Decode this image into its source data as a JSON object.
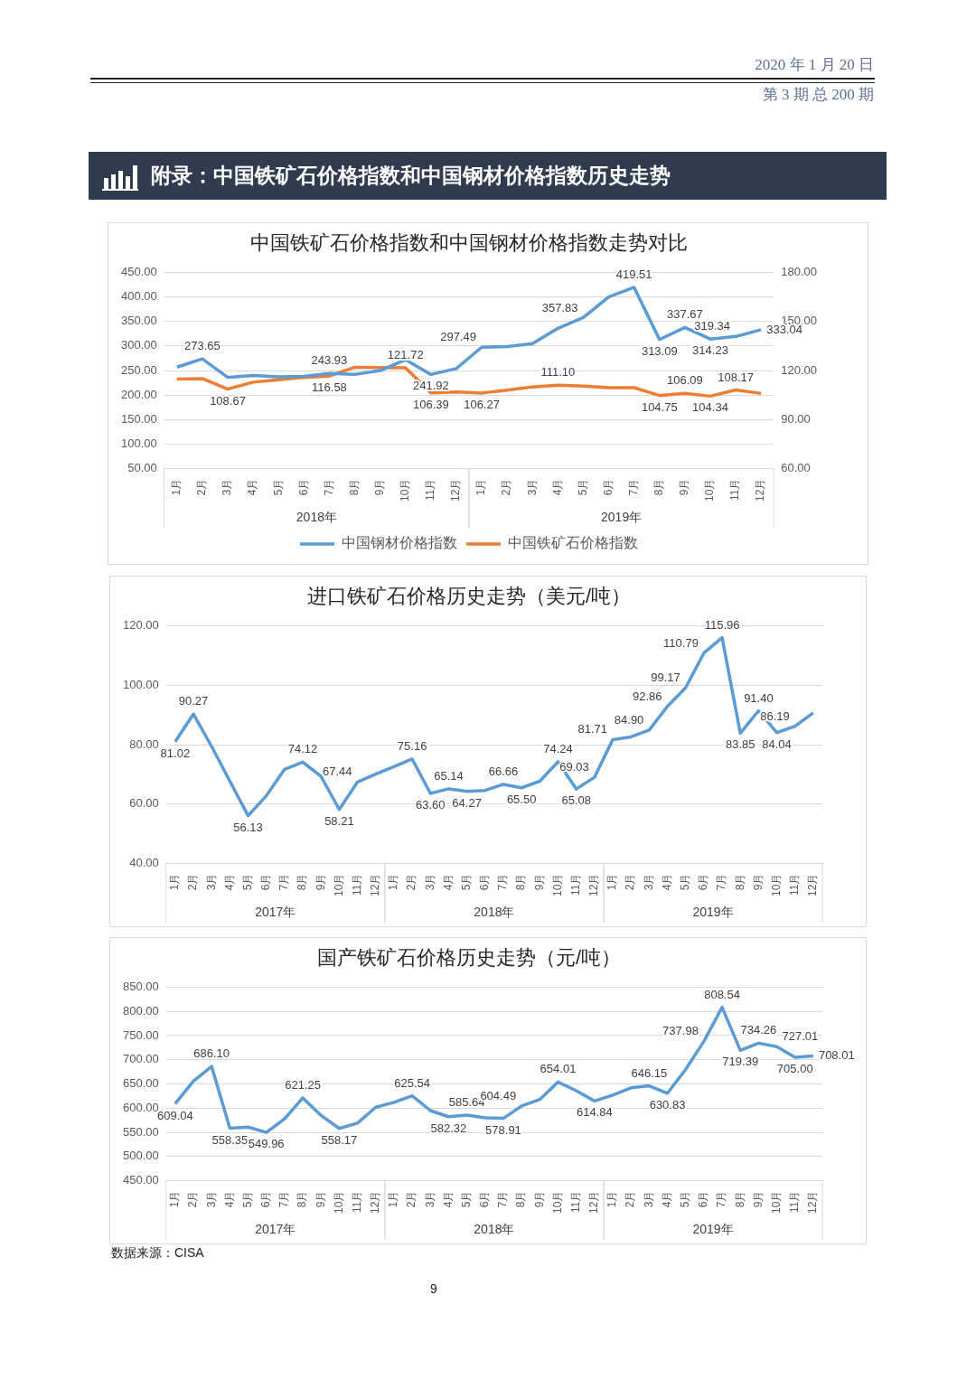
{
  "chart_data": [
    {
      "type": "other",
      "title": "附录：中国铁矿石价格指数和中国钢材价格指数历史走势",
      "annotations": [
        "2020 年 1 月 20 日",
        "第 3 期  总 200 期"
      ]
    },
    {
      "type": "line",
      "title": "中国铁矿石价格指数和中国钢材价格指数走势对比",
      "categories": [
        "1月",
        "2月",
        "3月",
        "4月",
        "5月",
        "6月",
        "7月",
        "8月",
        "9月",
        "10月",
        "11月",
        "12月",
        "1月",
        "2月",
        "3月",
        "4月",
        "5月",
        "6月",
        "7月",
        "8月",
        "9月",
        "10月",
        "11月",
        "12月"
      ],
      "annotations": [
        "2018年",
        "2019年"
      ],
      "series": [
        {
          "name": "中国钢材价格指数",
          "color": "#5b9bd5",
          "axis": "y",
          "values": [
            257,
            273.65,
            236,
            240,
            237,
            238,
            243.93,
            242,
            250,
            272,
            241.92,
            254,
            297.49,
            299,
            305,
            336,
            357.83,
            400,
            419.51,
            313.09,
            337.67,
            314.23,
            319.34,
            333.04
          ],
          "value_labels": [
            null,
            "273.65",
            null,
            null,
            null,
            null,
            "243.93",
            null,
            null,
            null,
            "241.92",
            null,
            "297.49",
            null,
            null,
            null,
            "357.83",
            null,
            "419.51",
            "313.09",
            "337.67",
            "314.23",
            "319.34",
            "333.04"
          ]
        },
        {
          "name": "中国铁矿石价格指数",
          "color": "#ed7d31",
          "axis": "y2",
          "values": [
            114.7,
            115.1,
            108.67,
            112.9,
            114.4,
            115.8,
            116.58,
            122,
            121.8,
            121.72,
            106.39,
            106.9,
            106.27,
            108,
            110,
            111.1,
            110.5,
            109.5,
            109.5,
            104.75,
            106.09,
            104.34,
            108.17,
            106
          ],
          "value_labels": [
            null,
            null,
            "108.67",
            null,
            null,
            null,
            "116.58",
            null,
            null,
            "121.72",
            "106.39",
            null,
            "106.27",
            null,
            null,
            "111.10",
            null,
            null,
            null,
            "104.75",
            "106.09",
            "104.34",
            "108.17",
            null
          ]
        }
      ],
      "ylim": [
        50,
        450
      ],
      "yticks": [
        {
          "value": 50,
          "label": "50.00"
        },
        {
          "value": 100,
          "label": "100.00"
        },
        {
          "value": 150,
          "label": "150.00"
        },
        {
          "value": 200,
          "label": "200.00"
        },
        {
          "value": 250,
          "label": "250.00"
        },
        {
          "value": 300,
          "label": "300.00"
        },
        {
          "value": 350,
          "label": "350.00"
        },
        {
          "value": 400,
          "label": "400.00"
        },
        {
          "value": 450,
          "label": "450.00"
        }
      ],
      "y2lim": [
        60,
        180
      ],
      "y2ticks": [
        {
          "value": 60,
          "label": "60.00"
        },
        {
          "value": 90,
          "label": "90.00"
        },
        {
          "value": 120,
          "label": "120.00"
        },
        {
          "value": 150,
          "label": "150.00"
        },
        {
          "value": 180,
          "label": "180.00"
        }
      ],
      "grid": "y",
      "legend": "bottom"
    },
    {
      "type": "line",
      "title": "进口铁矿石价格历史走势（美元/吨）",
      "categories": [
        "1月",
        "2月",
        "3月",
        "4月",
        "5月",
        "6月",
        "7月",
        "8月",
        "9月",
        "10月",
        "11月",
        "12月",
        "1月",
        "2月",
        "3月",
        "4月",
        "5月",
        "6月",
        "7月",
        "8月",
        "9月",
        "10月",
        "11月",
        "12月",
        "1月",
        "2月",
        "3月",
        "4月",
        "5月",
        "6月",
        "7月",
        "8月",
        "9月",
        "10月",
        "11月",
        "12月"
      ],
      "annotations": [
        "2017年",
        "2018年",
        "2019年"
      ],
      "series": [
        {
          "color": "#5b9bd5",
          "values": [
            81.02,
            90.27,
            79.4,
            67.7,
            56.13,
            62.8,
            71.7,
            74.12,
            69.3,
            58.21,
            67.44,
            70.1,
            72.6,
            75.16,
            63.6,
            65.14,
            64.27,
            64.6,
            66.66,
            65.5,
            67.7,
            74.24,
            65.08,
            69.03,
            81.71,
            82.6,
            84.9,
            92.86,
            99.17,
            110.79,
            115.96,
            83.85,
            91.4,
            84.04,
            86.19,
            90.7
          ],
          "value_labels": [
            "81.02",
            "90.27",
            null,
            null,
            "56.13",
            null,
            null,
            "74.12",
            null,
            "58.21",
            "67.44",
            null,
            null,
            "75.16",
            "63.60",
            "65.14",
            "64.27",
            null,
            "66.66",
            "65.50",
            null,
            "74.24",
            "65.08",
            "69.03",
            "81.71",
            null,
            "84.90",
            "92.86",
            "99.17",
            "110.79",
            "115.96",
            "83.85",
            "91.40",
            "84.04",
            "86.19",
            null
          ]
        }
      ],
      "ylim": [
        40,
        120
      ],
      "yticks": [
        {
          "value": 40,
          "label": "40.00"
        },
        {
          "value": 60,
          "label": "60.00"
        },
        {
          "value": 80,
          "label": "80.00"
        },
        {
          "value": 100,
          "label": "100.00"
        },
        {
          "value": 120,
          "label": "120.00"
        }
      ],
      "grid": "y"
    },
    {
      "type": "line",
      "title": "国产铁矿石价格历史走势（元/吨）",
      "categories": [
        "1月",
        "2月",
        "3月",
        "4月",
        "5月",
        "6月",
        "7月",
        "8月",
        "9月",
        "10月",
        "11月",
        "12月",
        "1月",
        "2月",
        "3月",
        "4月",
        "5月",
        "6月",
        "7月",
        "8月",
        "9月",
        "10月",
        "11月",
        "12月",
        "1月",
        "2月",
        "3月",
        "4月",
        "5月",
        "6月",
        "7月",
        "8月",
        "9月",
        "10月",
        "11月",
        "12月"
      ],
      "annotations": [
        "2017年",
        "2018年",
        "2019年"
      ],
      "series": [
        {
          "color": "#5b9bd5",
          "values": [
            609.04,
            656,
            686.1,
            558.35,
            561,
            549.96,
            578,
            621.25,
            585,
            558.17,
            569,
            602,
            612,
            625.54,
            595,
            582.32,
            585.64,
            580,
            578.91,
            604.49,
            618,
            654.01,
            636,
            614.84,
            627,
            642,
            646.15,
            630.83,
            680,
            737.98,
            808.54,
            719.39,
            734.26,
            727.01,
            705,
            708.01
          ],
          "value_labels": [
            "609.04",
            null,
            "686.10",
            "558.35",
            null,
            "549.96",
            null,
            "621.25",
            null,
            "558.17",
            null,
            null,
            null,
            "625.54",
            null,
            "582.32",
            "585.64",
            null,
            "578.91",
            "604.49",
            null,
            "654.01",
            null,
            "614.84",
            null,
            null,
            "646.15",
            "630.83",
            null,
            "737.98",
            "808.54",
            "719.39",
            "734.26",
            "727.01",
            "705.00",
            "708.01"
          ]
        }
      ],
      "ylim": [
        450,
        850
      ],
      "yticks": [
        {
          "value": 450,
          "label": "450.00"
        },
        {
          "value": 500,
          "label": "500.00"
        },
        {
          "value": 550,
          "label": "550.00"
        },
        {
          "value": 600,
          "label": "600.00"
        },
        {
          "value": 650,
          "label": "650.00"
        },
        {
          "value": 700,
          "label": "700.00"
        },
        {
          "value": 750,
          "label": "750.00"
        },
        {
          "value": 800,
          "label": "800.00"
        },
        {
          "value": 850,
          "label": "850.00"
        }
      ],
      "grid": "y"
    },
    {
      "type": "other",
      "annotations": [
        "数据来源：CISA",
        "9"
      ]
    }
  ]
}
